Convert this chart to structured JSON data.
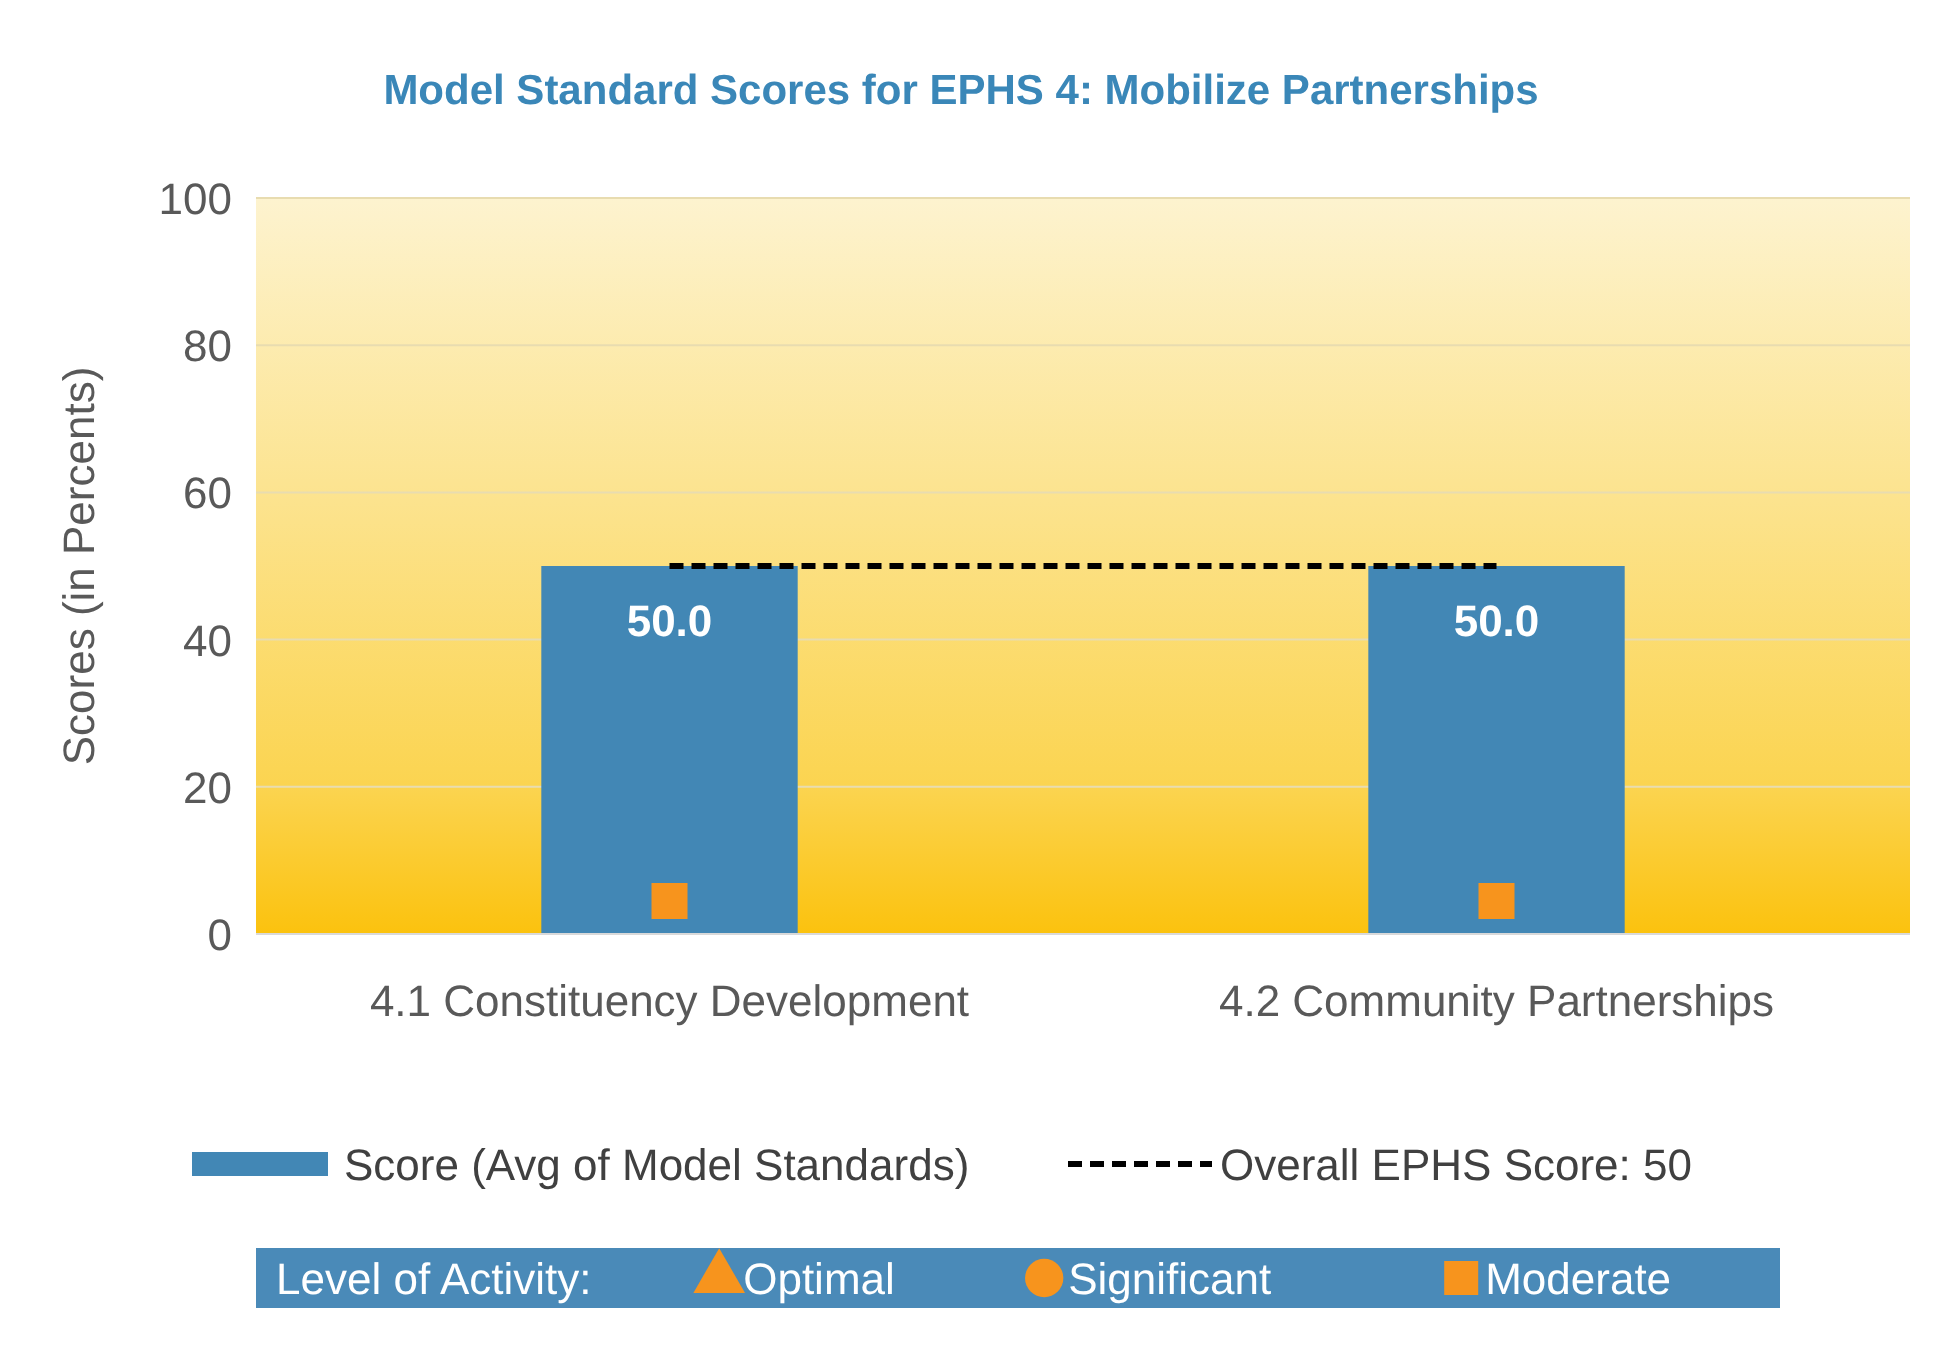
{
  "chart_data": {
    "type": "bar",
    "title": "Model Standard Scores for EPHS 4: Mobilize Partnerships",
    "ylabel": "Scores (in Percents)",
    "categories": [
      "4.1 Constituency Development",
      "4.2 Community Partnerships"
    ],
    "ylim": [
      0,
      100
    ],
    "yticks": [
      0,
      20,
      40,
      60,
      80,
      100
    ],
    "grid": "y",
    "legend": "bottom",
    "legend_title": "Level of Activity:",
    "series": [
      {
        "name": "Score (Avg of Model Standards)",
        "color": "#4287b5",
        "values": [
          50,
          50
        ],
        "value_labels": [
          "50.0",
          "50.0"
        ]
      },
      {
        "name": "Overall EPHS Score: 50",
        "type": "line",
        "color": "#000000",
        "line_style": "dashed",
        "marker": "none",
        "values": [
          50,
          50
        ]
      },
      {
        "name": "Optimal",
        "type": "scatter",
        "color": "#f7941d",
        "marker": "triangle",
        "values": [
          null,
          null
        ]
      },
      {
        "name": "Significant",
        "type": "scatter",
        "color": "#f7941d",
        "marker": "circle",
        "values": [
          null,
          null
        ]
      },
      {
        "name": "Moderate",
        "type": "scatter",
        "color": "#f7941d",
        "marker": "square",
        "values": [
          4.5,
          4.5
        ]
      }
    ]
  }
}
